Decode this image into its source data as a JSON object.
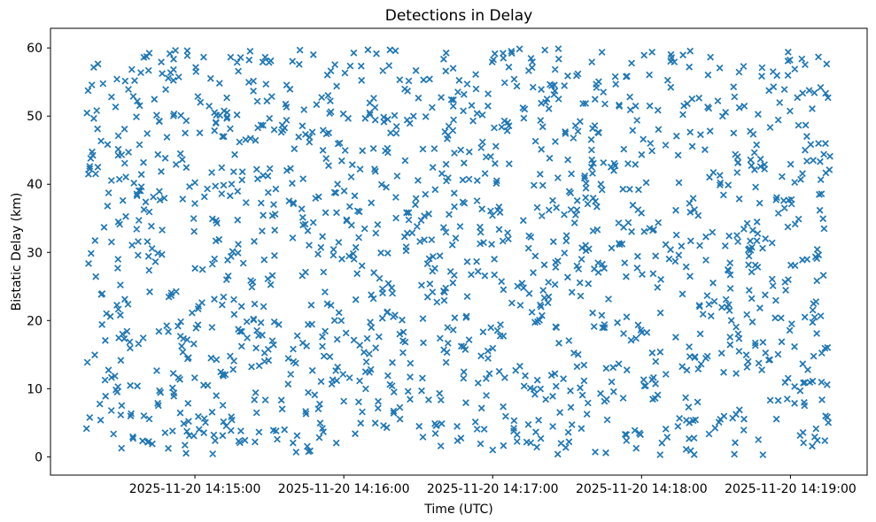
{
  "figure": {
    "background": "#ffffff"
  },
  "chart_data": {
    "type": "scatter",
    "title": "Detections in Delay",
    "xlabel": "Time (UTC)",
    "ylabel": "Bistatic Delay (km)",
    "grid": false,
    "legend": false,
    "x_axis": {
      "reference_time": "2025-11-20 14:15:00",
      "xlim_seconds_rel": [
        -58.2,
        270.9
      ],
      "ticks": [
        {
          "t": 0,
          "label": "2025-11-20 14:15:00"
        },
        {
          "t": 60,
          "label": "2025-11-20 14:16:00"
        },
        {
          "t": 120,
          "label": "2025-11-20 14:17:00"
        },
        {
          "t": 180,
          "label": "2025-11-20 14:18:00"
        },
        {
          "t": 240,
          "label": "2025-11-20 14:19:00"
        }
      ]
    },
    "y_axis": {
      "ylim": [
        -2.68,
        62.88
      ],
      "ticks": [
        {
          "v": 0,
          "label": "0"
        },
        {
          "v": 10,
          "label": "10"
        },
        {
          "v": 20,
          "label": "20"
        },
        {
          "v": 30,
          "label": "30"
        },
        {
          "v": 40,
          "label": "40"
        },
        {
          "v": 50,
          "label": "50"
        },
        {
          "v": 60,
          "label": "60"
        }
      ]
    },
    "series": [
      {
        "name": "detections",
        "marker": "x",
        "color": "#1f77b4",
        "n_points": 1500,
        "distribution": "uniform",
        "x_range_seconds_rel": [
          -44,
          256
        ],
        "y_range_km": [
          0.3,
          59.9
        ],
        "seed": 42
      }
    ]
  }
}
